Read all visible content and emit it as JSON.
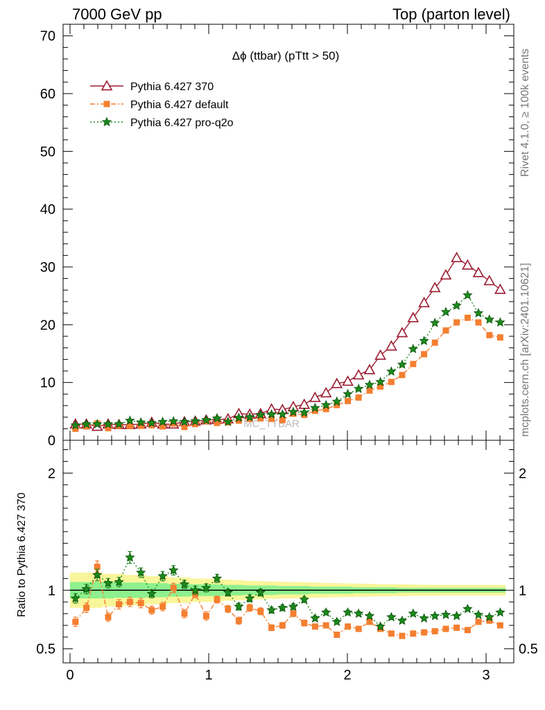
{
  "header": {
    "left": "7000 GeV pp",
    "right": "Top (parton level)"
  },
  "side": {
    "rivet": "Rivet 4.1.0, ≥ 100k events",
    "mcplots": "mcplots.cern.ch [arXiv:2401.10621]"
  },
  "chart_data": {
    "type": "line",
    "title": "Δϕ (ttbar) (pTtt > 50)",
    "faint_label": "MC_TTBAR",
    "xlabel": "",
    "ylabel": "",
    "xlim": [
      -0.05,
      3.2
    ],
    "ylim": [
      0,
      72
    ],
    "xticks": [
      0,
      1,
      2,
      3
    ],
    "yticks": [
      0,
      10,
      20,
      30,
      40,
      50,
      60,
      70
    ],
    "x": [
      0.039,
      0.118,
      0.196,
      0.275,
      0.353,
      0.432,
      0.511,
      0.589,
      0.668,
      0.746,
      0.825,
      0.903,
      0.982,
      1.06,
      1.139,
      1.217,
      1.296,
      1.374,
      1.453,
      1.532,
      1.61,
      1.689,
      1.767,
      1.846,
      1.924,
      2.003,
      2.081,
      2.16,
      2.238,
      2.317,
      2.395,
      2.474,
      2.553,
      2.631,
      2.71,
      2.788,
      2.867,
      2.945,
      3.024,
      3.102
    ],
    "series": [
      {
        "name": "Pythia 6.427 370",
        "color": "#9b1b30",
        "marker": "triangle-open",
        "values": [
          2.8,
          2.8,
          2.4,
          2.8,
          2.7,
          2.7,
          2.8,
          3.1,
          2.8,
          2.8,
          3.2,
          3.3,
          3.5,
          3.6,
          3.7,
          4.6,
          4.5,
          4.6,
          5.4,
          5.3,
          5.8,
          6.2,
          7.4,
          8.2,
          9.8,
          10.2,
          11.3,
          12.2,
          14.7,
          16.3,
          18.6,
          21.2,
          23.8,
          26.4,
          28.6,
          31.6,
          30.3,
          29.0,
          27.6,
          26.1
        ]
      },
      {
        "name": "Pythia 6.427 default",
        "color": "#f47f30",
        "marker": "square",
        "values": [
          2.0,
          2.4,
          2.9,
          2.1,
          2.5,
          2.5,
          2.5,
          2.6,
          2.4,
          2.9,
          2.3,
          2.8,
          3.3,
          3.0,
          3.1,
          3.4,
          3.7,
          3.8,
          3.7,
          3.5,
          4.6,
          4.4,
          5.1,
          5.4,
          6.1,
          6.8,
          7.4,
          8.6,
          9.3,
          10.1,
          11.3,
          13.2,
          14.9,
          16.9,
          19.0,
          20.4,
          21.2,
          20.4,
          18.2,
          17.8
        ]
      },
      {
        "name": "Pythia 6.427 pro-q2o",
        "color": "#1b8a1b",
        "marker": "star",
        "values": [
          2.6,
          2.8,
          2.8,
          2.8,
          2.8,
          3.4,
          3.1,
          3.0,
          3.2,
          3.3,
          3.2,
          3.3,
          3.5,
          3.8,
          3.2,
          3.9,
          4.0,
          4.4,
          4.5,
          4.5,
          4.9,
          4.8,
          5.6,
          6.1,
          6.7,
          8.0,
          8.9,
          9.6,
          10.1,
          11.9,
          13.1,
          15.8,
          17.2,
          20.3,
          22.2,
          23.3,
          25.1,
          22.0,
          20.9,
          20.4
        ]
      }
    ],
    "ratio": {
      "ylabel": "Ratio to Pythia 6.427 370",
      "ylim": [
        0.38,
        2.28
      ],
      "yticks": [
        0.5,
        1,
        2
      ],
      "yticklabels": [
        "0.5",
        "1",
        "2"
      ],
      "band_inner": [
        0.07,
        0.07,
        0.07,
        0.07,
        0.065,
        0.065,
        0.065,
        0.06,
        0.06,
        0.055,
        0.055,
        0.05,
        0.05,
        0.05,
        0.045,
        0.045,
        0.04,
        0.04,
        0.04,
        0.035,
        0.035,
        0.035,
        0.03,
        0.03,
        0.03,
        0.03,
        0.025,
        0.025,
        0.025,
        0.025,
        0.02,
        0.02,
        0.02,
        0.02,
        0.02,
        0.02,
        0.02,
        0.02,
        0.02,
        0.02
      ],
      "band_outer": [
        0.15,
        0.15,
        0.15,
        0.14,
        0.14,
        0.13,
        0.13,
        0.12,
        0.12,
        0.11,
        0.11,
        0.1,
        0.1,
        0.095,
        0.09,
        0.085,
        0.08,
        0.078,
        0.075,
        0.072,
        0.07,
        0.068,
        0.065,
        0.062,
        0.06,
        0.058,
        0.056,
        0.054,
        0.052,
        0.05,
        0.05,
        0.048,
        0.047,
        0.046,
        0.045,
        0.045,
        0.045,
        0.045,
        0.045,
        0.045
      ],
      "series": [
        {
          "name": "Pythia 6.427 default",
          "values": [
            0.73,
            0.85,
            1.2,
            0.77,
            0.88,
            0.9,
            0.89,
            0.83,
            0.86,
            1.02,
            0.8,
            0.97,
            0.78,
            0.92,
            0.84,
            0.74,
            0.85,
            0.82,
            0.68,
            0.7,
            0.8,
            0.72,
            0.69,
            0.7,
            0.62,
            0.69,
            0.67,
            0.73,
            0.67,
            0.63,
            0.61,
            0.63,
            0.64,
            0.65,
            0.67,
            0.68,
            0.66,
            0.73,
            0.74,
            0.7
          ],
          "errors": [
            0.04,
            0.04,
            0.05,
            0.035,
            0.04,
            0.04,
            0.04,
            0.035,
            0.035,
            0.04,
            0.035,
            0.035,
            0.035,
            0.03,
            0.03,
            0.03,
            0.03,
            0.03,
            0.025,
            0.025,
            0.025,
            0.025,
            0.02,
            0.02,
            0.02,
            0.02,
            0.02,
            0.02,
            0.02,
            0.015,
            0.015,
            0.015,
            0.015,
            0.015,
            0.015,
            0.015,
            0.015,
            0.015,
            0.015,
            0.015
          ]
        },
        {
          "name": "Pythia 6.427 pro-q2o",
          "values": [
            0.93,
            1.01,
            1.13,
            1.06,
            1.07,
            1.28,
            1.15,
            0.97,
            1.12,
            1.17,
            1.05,
            1.0,
            1.02,
            1.1,
            0.98,
            0.86,
            0.93,
            0.98,
            0.83,
            0.85,
            0.86,
            0.92,
            0.76,
            0.81,
            0.73,
            0.81,
            0.8,
            0.78,
            0.69,
            0.77,
            0.74,
            0.8,
            0.76,
            0.78,
            0.79,
            0.78,
            0.84,
            0.79,
            0.77,
            0.81
          ],
          "errors": [
            0.04,
            0.04,
            0.05,
            0.04,
            0.04,
            0.05,
            0.04,
            0.035,
            0.04,
            0.04,
            0.035,
            0.035,
            0.035,
            0.035,
            0.03,
            0.03,
            0.03,
            0.03,
            0.025,
            0.025,
            0.025,
            0.025,
            0.02,
            0.02,
            0.02,
            0.02,
            0.02,
            0.02,
            0.02,
            0.015,
            0.015,
            0.015,
            0.015,
            0.015,
            0.015,
            0.015,
            0.015,
            0.015,
            0.015,
            0.015
          ]
        }
      ]
    }
  }
}
